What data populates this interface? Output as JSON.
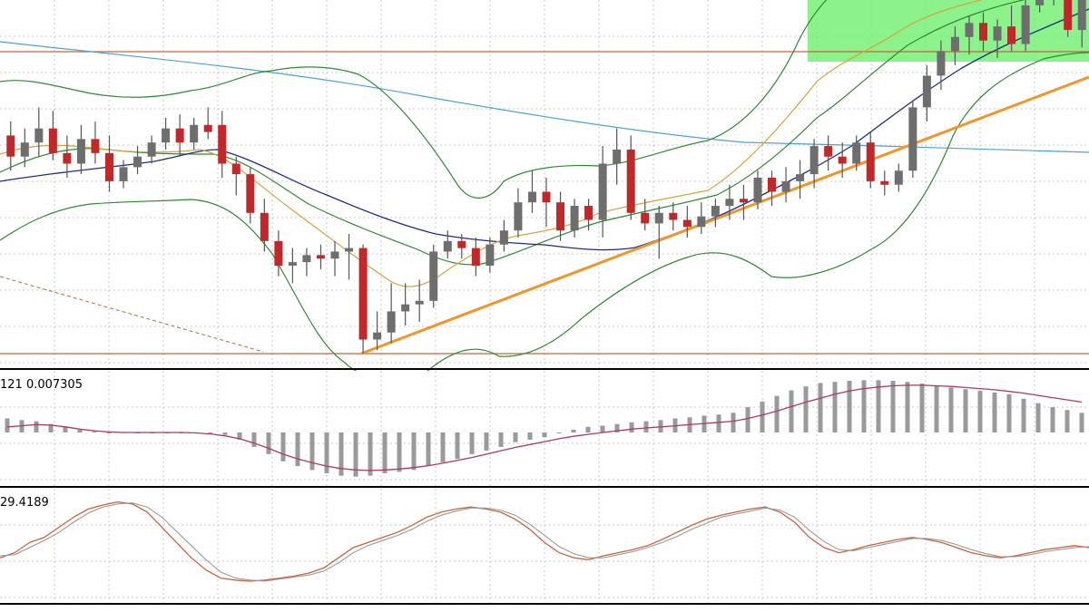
{
  "chart_data": [
    {
      "type": "candlestick",
      "title": "",
      "xlabel": "",
      "ylabel": "",
      "grid": true,
      "ylim": [
        0,
        100
      ],
      "candles": [
        {
          "o": 62,
          "h": 66,
          "l": 52,
          "c": 56
        },
        {
          "o": 56,
          "h": 64,
          "l": 53,
          "c": 60
        },
        {
          "o": 60,
          "h": 70,
          "l": 56,
          "c": 64
        },
        {
          "o": 64,
          "h": 69,
          "l": 55,
          "c": 57
        },
        {
          "o": 57,
          "h": 62,
          "l": 50,
          "c": 54
        },
        {
          "o": 54,
          "h": 65,
          "l": 51,
          "c": 61
        },
        {
          "o": 61,
          "h": 66,
          "l": 54,
          "c": 57
        },
        {
          "o": 57,
          "h": 62,
          "l": 46,
          "c": 49
        },
        {
          "o": 49,
          "h": 55,
          "l": 47,
          "c": 53
        },
        {
          "o": 53,
          "h": 59,
          "l": 51,
          "c": 56
        },
        {
          "o": 56,
          "h": 62,
          "l": 54,
          "c": 60
        },
        {
          "o": 60,
          "h": 67,
          "l": 58,
          "c": 64
        },
        {
          "o": 64,
          "h": 68,
          "l": 56,
          "c": 60
        },
        {
          "o": 60,
          "h": 67,
          "l": 58,
          "c": 65
        },
        {
          "o": 65,
          "h": 70,
          "l": 61,
          "c": 63
        },
        {
          "o": 65,
          "h": 69,
          "l": 50,
          "c": 54
        },
        {
          "o": 54,
          "h": 56,
          "l": 45,
          "c": 51
        },
        {
          "o": 51,
          "h": 53,
          "l": 37,
          "c": 40
        },
        {
          "o": 40,
          "h": 44,
          "l": 29,
          "c": 32
        },
        {
          "o": 32,
          "h": 35,
          "l": 22,
          "c": 25
        },
        {
          "o": 25,
          "h": 30,
          "l": 20,
          "c": 26
        },
        {
          "o": 26,
          "h": 30,
          "l": 22,
          "c": 28
        },
        {
          "o": 28,
          "h": 31,
          "l": 24,
          "c": 27
        },
        {
          "o": 27,
          "h": 32,
          "l": 22,
          "c": 29
        },
        {
          "o": 29,
          "h": 34,
          "l": 21,
          "c": 30
        },
        {
          "o": 30,
          "h": 31,
          "l": 0,
          "c": 4
        },
        {
          "o": 4,
          "h": 12,
          "l": 1,
          "c": 6
        },
        {
          "o": 6,
          "h": 20,
          "l": 3,
          "c": 12
        },
        {
          "o": 12,
          "h": 20,
          "l": 8,
          "c": 14
        },
        {
          "o": 14,
          "h": 21,
          "l": 9,
          "c": 15
        },
        {
          "o": 15,
          "h": 31,
          "l": 13,
          "c": 29
        },
        {
          "o": 29,
          "h": 35,
          "l": 27,
          "c": 32
        },
        {
          "o": 32,
          "h": 34,
          "l": 27,
          "c": 30
        },
        {
          "o": 30,
          "h": 33,
          "l": 22,
          "c": 25
        },
        {
          "o": 25,
          "h": 33,
          "l": 23,
          "c": 31
        },
        {
          "o": 31,
          "h": 38,
          "l": 29,
          "c": 35
        },
        {
          "o": 35,
          "h": 47,
          "l": 33,
          "c": 43
        },
        {
          "o": 43,
          "h": 52,
          "l": 40,
          "c": 46
        },
        {
          "o": 46,
          "h": 50,
          "l": 36,
          "c": 43
        },
        {
          "o": 43,
          "h": 46,
          "l": 32,
          "c": 35
        },
        {
          "o": 35,
          "h": 44,
          "l": 33,
          "c": 42
        },
        {
          "o": 42,
          "h": 44,
          "l": 35,
          "c": 38
        },
        {
          "o": 38,
          "h": 59,
          "l": 33,
          "c": 54
        },
        {
          "o": 54,
          "h": 64,
          "l": 48,
          "c": 58
        },
        {
          "o": 58,
          "h": 62,
          "l": 38,
          "c": 40
        },
        {
          "o": 40,
          "h": 44,
          "l": 35,
          "c": 37
        },
        {
          "o": 37,
          "h": 42,
          "l": 27,
          "c": 40
        },
        {
          "o": 40,
          "h": 43,
          "l": 35,
          "c": 38
        },
        {
          "o": 38,
          "h": 42,
          "l": 33,
          "c": 36
        },
        {
          "o": 36,
          "h": 43,
          "l": 34,
          "c": 39
        },
        {
          "o": 39,
          "h": 44,
          "l": 36,
          "c": 42
        },
        {
          "o": 42,
          "h": 48,
          "l": 38,
          "c": 44
        },
        {
          "o": 44,
          "h": 48,
          "l": 38,
          "c": 43
        },
        {
          "o": 43,
          "h": 52,
          "l": 41,
          "c": 50
        },
        {
          "o": 50,
          "h": 52,
          "l": 42,
          "c": 46
        },
        {
          "o": 46,
          "h": 53,
          "l": 43,
          "c": 49
        },
        {
          "o": 49,
          "h": 55,
          "l": 44,
          "c": 51
        },
        {
          "o": 51,
          "h": 61,
          "l": 47,
          "c": 59
        },
        {
          "o": 59,
          "h": 62,
          "l": 52,
          "c": 56
        },
        {
          "o": 56,
          "h": 60,
          "l": 50,
          "c": 54
        },
        {
          "o": 54,
          "h": 62,
          "l": 52,
          "c": 60
        },
        {
          "o": 60,
          "h": 63,
          "l": 47,
          "c": 49
        },
        {
          "o": 49,
          "h": 52,
          "l": 45,
          "c": 48
        },
        {
          "o": 48,
          "h": 54,
          "l": 46,
          "c": 52
        },
        {
          "o": 52,
          "h": 72,
          "l": 50,
          "c": 70
        },
        {
          "o": 70,
          "h": 82,
          "l": 66,
          "c": 79
        },
        {
          "o": 79,
          "h": 89,
          "l": 75,
          "c": 86
        },
        {
          "o": 86,
          "h": 93,
          "l": 82,
          "c": 90
        },
        {
          "o": 90,
          "h": 96,
          "l": 85,
          "c": 94
        },
        {
          "o": 94,
          "h": 97,
          "l": 86,
          "c": 89
        },
        {
          "o": 89,
          "h": 95,
          "l": 84,
          "c": 93
        },
        {
          "o": 93,
          "h": 99,
          "l": 86,
          "c": 88
        },
        {
          "o": 88,
          "h": 102,
          "l": 86,
          "c": 99
        },
        {
          "o": 99,
          "h": 106,
          "l": 97,
          "c": 104
        },
        {
          "o": 104,
          "h": 106,
          "l": 99,
          "c": 101
        },
        {
          "o": 101,
          "h": 104,
          "l": 90,
          "c": 92
        },
        {
          "o": 92,
          "h": 104,
          "l": 87,
          "c": 102
        }
      ]
    },
    {
      "type": "bar",
      "title": "",
      "legend_text": "121 0.007305",
      "ylim": [
        -1,
        1
      ],
      "values": [
        0.25,
        0.22,
        0.2,
        0.15,
        0.1,
        0.05,
        0.02,
        -0.02,
        0.01,
        0.0,
        0.0,
        0.0,
        0.0,
        0.0,
        0.0,
        -0.05,
        -0.15,
        -0.3,
        -0.45,
        -0.6,
        -0.7,
        -0.78,
        -0.85,
        -0.9,
        -0.92,
        -0.9,
        -0.85,
        -0.82,
        -0.78,
        -0.7,
        -0.62,
        -0.55,
        -0.45,
        -0.38,
        -0.3,
        -0.2,
        -0.15,
        -0.1,
        0.0,
        0.05,
        0.1,
        0.12,
        0.15,
        0.18,
        0.2,
        0.22,
        0.25,
        0.27,
        0.3,
        0.32,
        0.35,
        0.45,
        0.55,
        0.65,
        0.75,
        0.82,
        0.88,
        0.9,
        0.92,
        0.93,
        0.93,
        0.92,
        0.9,
        0.87,
        0.83,
        0.8,
        0.77,
        0.74,
        0.71,
        0.68,
        0.6,
        0.52,
        0.45,
        0.4,
        0.35
      ],
      "signal": [
        0.1,
        0.12,
        0.14,
        0.13,
        0.1,
        0.06,
        0.03,
        0.01,
        0.0,
        0.0,
        0.0,
        0.0,
        0.0,
        -0.01,
        -0.03,
        -0.07,
        -0.13,
        -0.22,
        -0.33,
        -0.45,
        -0.55,
        -0.63,
        -0.7,
        -0.75,
        -0.78,
        -0.79,
        -0.78,
        -0.76,
        -0.73,
        -0.69,
        -0.64,
        -0.58,
        -0.52,
        -0.45,
        -0.38,
        -0.31,
        -0.25,
        -0.19,
        -0.13,
        -0.08,
        -0.04,
        0.0,
        0.03,
        0.06,
        0.08,
        0.1,
        0.12,
        0.14,
        0.16,
        0.18,
        0.2,
        0.25,
        0.31,
        0.38,
        0.46,
        0.54,
        0.61,
        0.68,
        0.74,
        0.78,
        0.81,
        0.83,
        0.84,
        0.84,
        0.83,
        0.82,
        0.8,
        0.78,
        0.76,
        0.73,
        0.7,
        0.66,
        0.62,
        0.58,
        0.54
      ]
    },
    {
      "type": "line",
      "title": "",
      "legend_text": "29.4189",
      "ylim": [
        0,
        100
      ],
      "series": [
        {
          "values": [
            40,
            45,
            55,
            60,
            70,
            80,
            88,
            92,
            95,
            93,
            85,
            70,
            55,
            40,
            28,
            20,
            18,
            17,
            18,
            20,
            22,
            25,
            30,
            40,
            50,
            55,
            60,
            65,
            72,
            80,
            85,
            88,
            90,
            88,
            85,
            78,
            68,
            55,
            45,
            40,
            38,
            42,
            45,
            48,
            52,
            58,
            65,
            72,
            78,
            82,
            85,
            88,
            90,
            85,
            75,
            60,
            50,
            45,
            48,
            52,
            55,
            58,
            60,
            58,
            55,
            50,
            45,
            42,
            40,
            42,
            45,
            48,
            50,
            52,
            50
          ]
        },
        {
          "values": [
            42,
            43,
            50,
            57,
            65,
            75,
            84,
            90,
            93,
            94,
            90,
            80,
            66,
            52,
            38,
            26,
            20,
            18,
            17,
            19,
            21,
            23,
            27,
            35,
            45,
            52,
            57,
            62,
            68,
            76,
            82,
            86,
            89,
            89,
            87,
            82,
            73,
            62,
            51,
            44,
            40,
            40,
            43,
            46,
            50,
            55,
            61,
            68,
            74,
            80,
            83,
            86,
            89,
            87,
            80,
            67,
            56,
            48,
            47,
            50,
            53,
            56,
            59,
            59,
            57,
            53,
            48,
            44,
            41,
            41,
            43,
            46,
            48,
            50,
            51
          ]
        }
      ]
    }
  ]
}
